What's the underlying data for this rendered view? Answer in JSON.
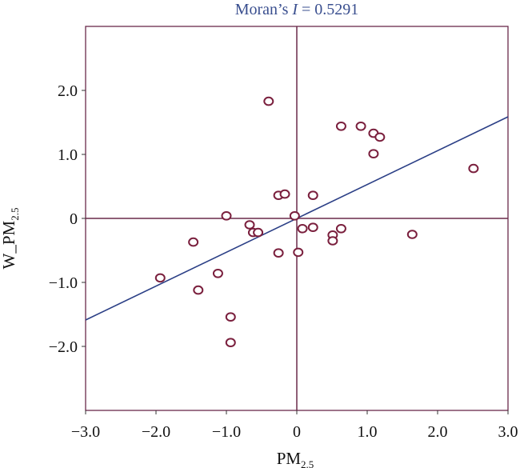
{
  "chart_data": {
    "type": "scatter",
    "title_prefix": "Moran’s ",
    "title_italic": "I",
    "title_suffix": " = 0.5291",
    "xlabel": {
      "main": "PM",
      "sub": "2.5"
    },
    "ylabel": {
      "main": "W_PM",
      "sub": "2.5"
    },
    "xlim": [
      -3.0,
      3.0
    ],
    "ylim": [
      -3.0,
      3.0
    ],
    "x_ticks": [
      -3.0,
      -2.0,
      -1.0,
      0,
      1.0,
      2.0,
      3.0
    ],
    "x_tick_labels": [
      "−3.0",
      "−2.0",
      "−1.0",
      "0",
      "1.0",
      "2.0",
      "3.0"
    ],
    "y_ticks": [
      -2.0,
      -1.0,
      0,
      1.0,
      2.0
    ],
    "y_tick_labels": [
      "−2.0",
      "−1.0",
      "0",
      "1.0",
      "2.0"
    ],
    "regression": {
      "slope": 0.5291,
      "intercept": 0
    },
    "reference_lines": {
      "x": 0,
      "y": 0
    },
    "grid": false,
    "colors": {
      "points": "#7a1f3d",
      "regression": "#2b3f86",
      "frame": "#6a2a4a",
      "title": "#3a4f8f"
    },
    "points": [
      {
        "x": -0.4,
        "y": 1.83
      },
      {
        "x": 0.63,
        "y": 1.44
      },
      {
        "x": 0.91,
        "y": 1.44
      },
      {
        "x": 1.09,
        "y": 1.33
      },
      {
        "x": 1.18,
        "y": 1.27
      },
      {
        "x": 1.09,
        "y": 1.01
      },
      {
        "x": 2.51,
        "y": 0.78
      },
      {
        "x": -0.26,
        "y": 0.36
      },
      {
        "x": -0.17,
        "y": 0.38
      },
      {
        "x": 0.23,
        "y": 0.36
      },
      {
        "x": -1.0,
        "y": 0.04
      },
      {
        "x": -0.03,
        "y": 0.04
      },
      {
        "x": -0.67,
        "y": -0.1
      },
      {
        "x": -0.62,
        "y": -0.22
      },
      {
        "x": -0.55,
        "y": -0.22
      },
      {
        "x": 0.08,
        "y": -0.16
      },
      {
        "x": 0.23,
        "y": -0.14
      },
      {
        "x": 0.63,
        "y": -0.16
      },
      {
        "x": 0.51,
        "y": -0.26
      },
      {
        "x": 0.51,
        "y": -0.35
      },
      {
        "x": 1.64,
        "y": -0.25
      },
      {
        "x": -1.47,
        "y": -0.37
      },
      {
        "x": -0.26,
        "y": -0.54
      },
      {
        "x": 0.02,
        "y": -0.53
      },
      {
        "x": -1.12,
        "y": -0.86
      },
      {
        "x": -1.94,
        "y": -0.93
      },
      {
        "x": -1.4,
        "y": -1.12
      },
      {
        "x": -0.94,
        "y": -1.54
      },
      {
        "x": -0.94,
        "y": -1.94
      }
    ]
  }
}
